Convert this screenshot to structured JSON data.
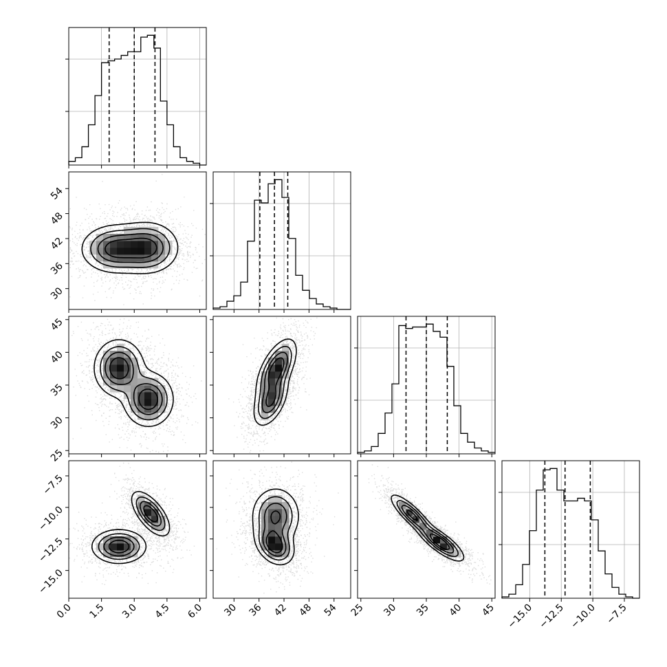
{
  "chart_data": {
    "type": "corner",
    "parameters": [
      {
        "ticks": [
          0.0,
          1.5,
          3.0,
          4.5,
          6.0
        ],
        "tick_labels": [
          "0.0",
          "1.5",
          "3.0",
          "4.5",
          "6.0"
        ],
        "range": [
          0.0,
          6.3
        ],
        "quantiles": [
          1.85,
          3.0,
          3.95
        ],
        "histogram": {
          "start": 0.0,
          "width": 0.3,
          "counts": [
            2,
            4,
            10,
            22,
            38,
            56,
            57,
            58,
            60,
            62,
            62,
            70,
            71,
            64,
            35,
            22,
            10,
            4,
            2,
            1,
            0
          ]
        }
      },
      {
        "ticks": [
          30,
          36,
          42,
          48,
          54
        ],
        "tick_labels": [
          "30",
          "36",
          "42",
          "48",
          "54"
        ],
        "range": [
          25,
          58
        ],
        "quantiles": [
          36.2,
          39.7,
          42.9
        ],
        "histogram": {
          "start": 25.0,
          "width": 1.65,
          "counts": [
            1,
            2,
            6,
            10,
            20,
            50,
            80,
            78,
            92,
            95,
            82,
            52,
            25,
            14,
            8,
            4,
            2,
            1,
            0,
            0
          ]
        }
      },
      {
        "ticks": [
          25,
          30,
          35,
          40,
          45
        ],
        "tick_labels": [
          "25",
          "30",
          "35",
          "40",
          "45"
        ],
        "range": [
          24.5,
          45.5
        ],
        "quantiles": [
          31.9,
          35.0,
          38.2
        ],
        "histogram": {
          "start": 24.5,
          "width": 1.05,
          "counts": [
            1,
            2,
            5,
            14,
            28,
            48,
            88,
            86,
            87,
            87,
            89,
            84,
            80,
            60,
            33,
            14,
            8,
            4,
            2,
            1
          ]
        }
      },
      {
        "ticks": [
          -15.0,
          -12.5,
          -10.0,
          -7.5
        ],
        "tick_labels": [
          "−15.0",
          "−12.5",
          "−10.0",
          "−7.5"
        ],
        "range": [
          -17.2,
          -6.3
        ],
        "quantiles": [
          -13.8,
          -12.2,
          -10.2
        ],
        "histogram": {
          "start": -17.2,
          "width": 0.545,
          "counts": [
            1,
            3,
            10,
            25,
            50,
            80,
            95,
            96,
            80,
            72,
            72,
            74,
            72,
            58,
            35,
            18,
            8,
            3,
            1,
            0
          ]
        }
      }
    ],
    "pairs": [
      {
        "row": 1,
        "col": 0,
        "modes": [
          {
            "x": 2.1,
            "y": 39.5,
            "sx": 0.75,
            "sy": 2.8,
            "rho": 0.0,
            "w": 0.5
          },
          {
            "x": 3.6,
            "y": 39.8,
            "sx": 0.7,
            "sy": 3.0,
            "rho": 0.0,
            "w": 0.5
          }
        ]
      },
      {
        "row": 2,
        "col": 0,
        "modes": [
          {
            "x": 2.3,
            "y": 37.6,
            "sx": 0.55,
            "sy": 2.1,
            "rho": 0.0,
            "w": 0.5
          },
          {
            "x": 3.65,
            "y": 32.8,
            "sx": 0.55,
            "sy": 2.0,
            "rho": 0.0,
            "w": 0.5
          }
        ]
      },
      {
        "row": 2,
        "col": 1,
        "modes": [
          {
            "x": 40.2,
            "y": 37.5,
            "sx": 2.3,
            "sy": 2.2,
            "rho": 0.6,
            "w": 0.55
          },
          {
            "x": 38.8,
            "y": 32.6,
            "sx": 2.0,
            "sy": 1.9,
            "rho": 0.5,
            "w": 0.45
          }
        ]
      },
      {
        "row": 3,
        "col": 0,
        "modes": [
          {
            "x": 2.3,
            "y": -13.1,
            "sx": 0.6,
            "sy": 0.65,
            "rho": 0.0,
            "w": 0.5
          },
          {
            "x": 3.75,
            "y": -10.5,
            "sx": 0.42,
            "sy": 0.85,
            "rho": -0.65,
            "w": 0.5
          }
        ]
      },
      {
        "row": 3,
        "col": 1,
        "modes": [
          {
            "x": 40.0,
            "y": -10.7,
            "sx": 2.8,
            "sy": 1.1,
            "rho": 0.0,
            "w": 0.45
          },
          {
            "x": 39.8,
            "y": -13.0,
            "sx": 2.2,
            "sy": 0.75,
            "rho": -0.3,
            "w": 0.55
          }
        ]
      },
      {
        "row": 3,
        "col": 2,
        "modes": [
          {
            "x": 32.8,
            "y": -10.6,
            "sx": 1.6,
            "sy": 0.8,
            "rho": -0.85,
            "w": 0.45
          },
          {
            "x": 37.2,
            "y": -12.8,
            "sx": 1.7,
            "sy": 0.7,
            "rho": -0.8,
            "w": 0.55
          }
        ]
      }
    ],
    "contour_levels": [
      0.12,
      0.3,
      0.52,
      0.75
    ]
  }
}
